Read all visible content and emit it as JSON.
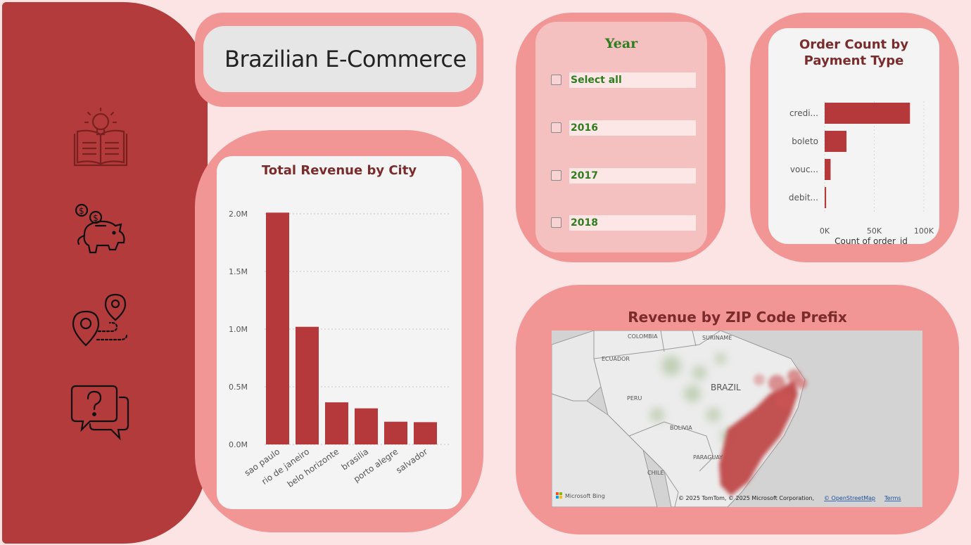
{
  "header": {
    "title": "Brazilian E-Commerce"
  },
  "sidebar": {
    "icons": [
      {
        "name": "book-lightbulb-icon"
      },
      {
        "name": "piggy-bank-coins-icon"
      },
      {
        "name": "map-route-pins-icon"
      },
      {
        "name": "question-chat-icon"
      }
    ]
  },
  "year_filter": {
    "title": "Year",
    "options": [
      "Select all",
      "2016",
      "2017",
      "2018"
    ]
  },
  "revenue_city": {
    "title": "Total Revenue by City"
  },
  "payment": {
    "title_line1": "Order Count by",
    "title_line2": "Payment Type"
  },
  "map": {
    "title": "Revenue by ZIP Code Prefix",
    "labels": {
      "colombia": "COLOMBIA",
      "suriname": "SURINAME",
      "ecuador": "ECUADOR",
      "brazil": "BRAZIL",
      "peru": "PERU",
      "bolivia": "BOLIVIA",
      "paraguay": "PARAGUAY",
      "chile": "CHILE"
    },
    "logo_text": "Microsoft Bing",
    "copyright": "© 2025 TomTom, © 2025 Microsoft Corporation,",
    "osm_link": "© OpenStreetMap",
    "terms_link": "Terms"
  },
  "colors": {
    "sidebar": "#b33b3b",
    "card": "#f29595",
    "bar": "#b5393b",
    "title": "#7a2b2b",
    "year_text": "#2e7d1f",
    "background": "#fce4e4"
  },
  "chart_data": [
    {
      "type": "bar",
      "title": "Total Revenue by City",
      "categories": [
        "sao paulo",
        "rio de janeiro",
        "belo horizonte",
        "brasilia",
        "porto alegre",
        "salvador"
      ],
      "values": [
        2010000,
        1020000,
        365000,
        313000,
        197000,
        193000
      ],
      "yticks": [
        "0.0M",
        "0.5M",
        "1.0M",
        "1.5M",
        "2.0M"
      ],
      "ylim": [
        0,
        2000000
      ],
      "xlabel": "",
      "ylabel": "",
      "grid": true
    },
    {
      "type": "bar",
      "orientation": "horizontal",
      "title": "Order Count by Payment Type",
      "categories": [
        "credi...",
        "boleto",
        "vouc...",
        "debit..."
      ],
      "values": [
        86000,
        22000,
        6000,
        1500
      ],
      "xticks": [
        "0K",
        "50K",
        "100K"
      ],
      "xlim": [
        0,
        100000
      ],
      "xlabel": "Count of order_id",
      "grid": true
    }
  ]
}
